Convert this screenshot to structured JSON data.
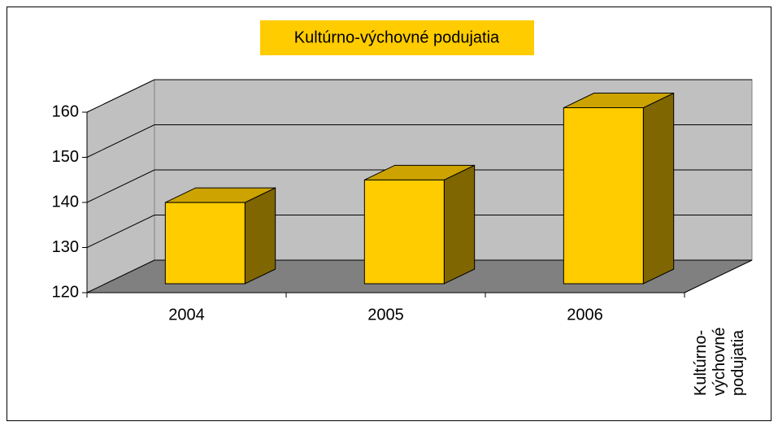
{
  "chart_data": {
    "type": "bar3d",
    "title": "Kultúrno-výchovné podujatia",
    "categories": [
      "2004",
      "2005",
      "2006"
    ],
    "series": [
      {
        "name": "Kultúrno-výchovné podujatia",
        "color": "#ffcc00",
        "values": [
          138,
          143,
          159
        ]
      }
    ],
    "ylim": [
      120,
      160
    ],
    "yticks": [
      120,
      130,
      140,
      150,
      160
    ],
    "grid": true
  }
}
